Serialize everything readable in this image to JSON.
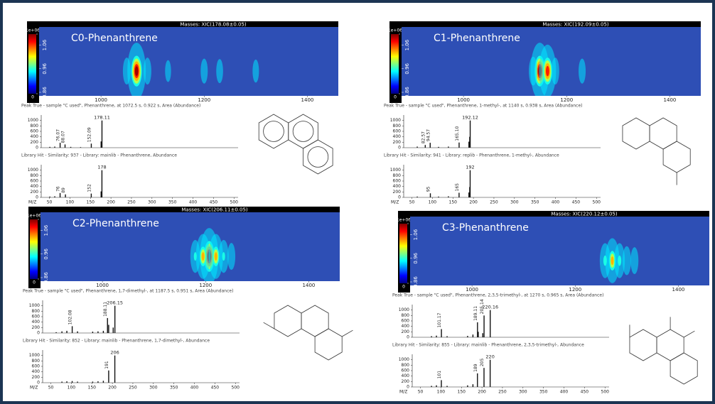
{
  "chart_data": [
    {
      "type": "heatmap",
      "title": "Masses: XIC(178.08±0.05)",
      "label": "C0-Phenanthrene",
      "xlim": [
        880,
        1460
      ],
      "xticks": [
        1000,
        1200,
        1400
      ],
      "ylim": [
        0.845,
        1.137
      ],
      "yticks": [
        0.86,
        0.96,
        1.06
      ],
      "colorbar_lim": [
        0,
        1000000
      ],
      "colorbar_ticks": [
        0,
        {
          "value": 1000000,
          "label": "1e+06"
        }
      ],
      "x": [
        1069,
        1050,
        1090,
        1130,
        1200,
        1230,
        1300
      ],
      "y": [
        0.95,
        0.95,
        0.95,
        0.95,
        0.95,
        0.95,
        0.95
      ],
      "values": [
        1000000,
        250000,
        250000,
        120000,
        200000,
        180000,
        150000
      ]
    },
    {
      "type": "bar",
      "title": "Peak True - sample \"C used\", Phenanthrene, at 1072.5 s, 0.922 s, Area (Abundance)",
      "xlim": [
        30,
        510
      ],
      "ylim": [
        0,
        1200
      ],
      "yticks": [
        0,
        200,
        400,
        600,
        800,
        1000
      ],
      "x": [
        51,
        63,
        76.07,
        88.07,
        102,
        126,
        152.09,
        176,
        178.11
      ],
      "values": [
        30,
        40,
        180,
        120,
        30,
        20,
        150,
        230,
        1000
      ],
      "peak_labels": [
        76.07,
        88.07,
        152.09,
        178.11
      ]
    },
    {
      "type": "bar",
      "title": "Library Hit - Similarity: 937 - Library: mainlib - Phenanthrene, Abundance",
      "xlim": [
        30,
        510
      ],
      "ylim": [
        0,
        1200
      ],
      "yticks": [
        0,
        200,
        400,
        600,
        800,
        1000
      ],
      "xticks": [
        50,
        100,
        150,
        200,
        250,
        300,
        350,
        400,
        450,
        500
      ],
      "xlabel": "M/Z",
      "x": [
        51,
        63,
        76,
        89,
        152,
        176,
        178
      ],
      "values": [
        30,
        40,
        160,
        110,
        140,
        220,
        1000
      ],
      "peak_labels": [
        76,
        89,
        152,
        178
      ]
    },
    {
      "type": "heatmap",
      "title": "Masses: XIC(192.09±0.05)",
      "label": "C1-Phenanthrene",
      "xlim": [
        880,
        1460
      ],
      "xticks": [
        1000,
        1200,
        1400
      ],
      "ylim": [
        0.845,
        1.137
      ],
      "yticks": [
        0.86,
        0.96,
        1.06
      ],
      "colorbar_lim": [
        0,
        1000000
      ],
      "colorbar_ticks": [
        0,
        {
          "value": 1000000,
          "label": "1e+06"
        }
      ],
      "x": [
        1148,
        1163,
        1135,
        1178,
        1230
      ],
      "y": [
        0.95,
        0.95,
        0.95,
        0.95,
        0.95
      ],
      "values": [
        1000000,
        900000,
        300000,
        250000,
        200000
      ]
    },
    {
      "type": "bar",
      "title": "Peak True - sample \"C used\", Phenanthrene, 1-methyl-, at 1140 s, 0.938 s, Area (Abundance)",
      "xlim": [
        30,
        510
      ],
      "ylim": [
        0,
        1200
      ],
      "yticks": [
        0,
        200,
        400,
        600,
        800,
        1000
      ],
      "x": [
        63,
        82.57,
        94.57,
        115,
        139,
        165.1,
        189,
        191,
        192.12
      ],
      "values": [
        40,
        100,
        180,
        30,
        40,
        190,
        220,
        400,
        1000
      ],
      "peak_labels": [
        82.57,
        94.57,
        {
          "value": 165.1,
          "label": "165.10"
        },
        192.12
      ]
    },
    {
      "type": "bar",
      "title": "Library Hit - Similarity: 941 - Library: replib - Phenanthrene, 1-methyl-, Abundance",
      "xlim": [
        30,
        510
      ],
      "ylim": [
        0,
        1200
      ],
      "yticks": [
        0,
        200,
        400,
        600,
        800,
        1000
      ],
      "xticks": [
        50,
        100,
        150,
        200,
        250,
        300,
        350,
        400,
        450,
        500
      ],
      "xlabel": "M/Z",
      "x": [
        63,
        95,
        115,
        139,
        165,
        189,
        191,
        192
      ],
      "values": [
        30,
        150,
        30,
        40,
        170,
        180,
        380,
        1000
      ],
      "peak_labels": [
        95,
        165,
        192
      ]
    },
    {
      "type": "heatmap",
      "title": "Masses: XIC(206.11±0.05)",
      "label": "C2-Phenanthrene",
      "xlim": [
        880,
        1460
      ],
      "xticks": [
        1000,
        1200,
        1400
      ],
      "ylim": [
        0.845,
        1.137
      ],
      "yticks": [
        0.86,
        0.96,
        1.06
      ],
      "colorbar_lim": [
        0,
        1000000
      ],
      "colorbar_ticks": [
        0,
        {
          "value": 1000000,
          "label": "1e+06"
        }
      ],
      "x": [
        1207,
        1195,
        1220,
        1180,
        1235,
        1250
      ],
      "y": [
        0.95,
        0.95,
        0.95,
        0.95,
        0.95,
        0.95
      ],
      "values": [
        1000000,
        700000,
        700000,
        400000,
        400000,
        250000
      ]
    },
    {
      "type": "bar",
      "title": "Peak True - sample \"C used\", Phenanthrene, 1,7-dimethyl-, at 1187.5 s, 0.951 s, Area (Abundance)",
      "xlim": [
        30,
        510
      ],
      "ylim": [
        0,
        1200
      ],
      "yticks": [
        0,
        200,
        400,
        600,
        800,
        1000
      ],
      "x": [
        63,
        77,
        89,
        102.08,
        115,
        152,
        165,
        178,
        188.11,
        191,
        202,
        206.15
      ],
      "values": [
        30,
        60,
        80,
        250,
        60,
        50,
        60,
        80,
        550,
        300,
        200,
        1000
      ],
      "peak_labels": [
        102.08,
        188.11,
        206.15
      ]
    },
    {
      "type": "bar",
      "title": "Library Hit - Similarity: 852 - Library: mainlib - Phenanthrene, 1,7-dimethyl-, Abundance",
      "xlim": [
        30,
        510
      ],
      "ylim": [
        0,
        1200
      ],
      "yticks": [
        0,
        200,
        400,
        600,
        800,
        1000
      ],
      "xticks": [
        50,
        100,
        150,
        200,
        250,
        300,
        350,
        400,
        450,
        500
      ],
      "xlabel": "M/Z",
      "x": [
        77,
        89,
        102,
        115,
        152,
        165,
        178,
        191,
        206
      ],
      "values": [
        40,
        50,
        60,
        40,
        40,
        50,
        70,
        450,
        1000
      ],
      "peak_labels": [
        191,
        206
      ]
    },
    {
      "type": "heatmap",
      "title": "Masses: XIC(220.12±0.05)",
      "label": "C3-Phenanthrene",
      "xlim": [
        880,
        1460
      ],
      "xticks": [
        1000,
        1200,
        1400
      ],
      "ylim": [
        0.845,
        1.137
      ],
      "yticks": [
        0.86,
        0.96,
        1.06
      ],
      "colorbar_lim": [
        0,
        1000000
      ],
      "colorbar_ticks": [
        0,
        {
          "value": 1000000,
          "label": "1e+06"
        }
      ],
      "x": [
        1272,
        1258,
        1286,
        1300,
        1315
      ],
      "y": [
        0.95,
        0.95,
        0.95,
        0.95,
        0.95
      ],
      "values": [
        700000,
        450000,
        450000,
        300000,
        250000
      ]
    },
    {
      "type": "bar",
      "title": "Peak True - sample \"C used\", Phenanthrene, 2,3,5-trimethyl-, at 1270 s, 0.965 s, Area (Abundance)",
      "xlim": [
        30,
        510
      ],
      "ylim": [
        0,
        1200
      ],
      "yticks": [
        0,
        200,
        400,
        600,
        800,
        1000
      ],
      "x": [
        77,
        89,
        101.17,
        115,
        165,
        178,
        189.11,
        191,
        202,
        205.14,
        220.16
      ],
      "values": [
        40,
        60,
        300,
        40,
        50,
        100,
        550,
        200,
        150,
        800,
        1000
      ],
      "peak_labels": [
        101.17,
        189.11,
        205.14,
        220.16
      ]
    },
    {
      "type": "bar",
      "title": "Library Hit - Similarity: 855 - Library: mainlib - Phenanthrene, 2,3,5-trimethyl-, Abundance",
      "xlim": [
        30,
        510
      ],
      "ylim": [
        0,
        1200
      ],
      "yticks": [
        0,
        200,
        400,
        600,
        800,
        1000
      ],
      "xticks": [
        50,
        100,
        150,
        200,
        250,
        300,
        350,
        400,
        450,
        500
      ],
      "xlabel": "M/Z",
      "x": [
        77,
        89,
        101,
        115,
        165,
        178,
        189,
        205,
        220
      ],
      "values": [
        40,
        60,
        250,
        40,
        60,
        100,
        500,
        700,
        1000
      ],
      "peak_labels": [
        101,
        189,
        205,
        220
      ]
    }
  ]
}
